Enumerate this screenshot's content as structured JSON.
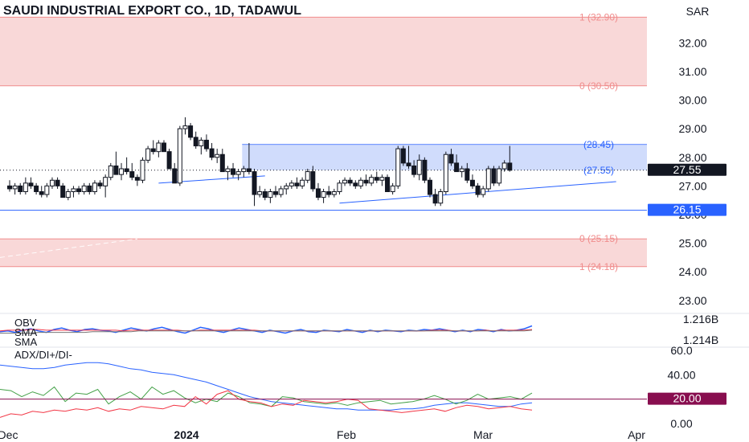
{
  "header": {
    "title": "SAUDI INDUSTRIAL EXPORT CO., 1D, TADAWUL",
    "currency": "SAR"
  },
  "colors": {
    "up": "#ffffff",
    "down": "#131722",
    "outline": "#131722",
    "fib_zone": "#f6c7c7",
    "fib_line": "#f08c8c",
    "range_box": "#c8d6fb",
    "range_line": "#2962ff",
    "obv": "#2962ff",
    "sma_fast": "#f23645",
    "sma_slow": "#777777",
    "adx": "#2962ff",
    "di_plus": "#43a047",
    "di_minus": "#f23645",
    "threshold": "#880e4f",
    "price_badge": "#131722",
    "support_badge": "#2962ff",
    "threshold_badge": "#880e4f"
  },
  "fib_levels": [
    {
      "label": "1 (32.90)",
      "price": 32.9
    },
    {
      "label": "0 (30.50)",
      "price": 30.5
    },
    {
      "label": "0 (25.15)",
      "price": 25.15
    },
    {
      "label": "1 (24.18)",
      "price": 24.18
    }
  ],
  "range_box": {
    "top_label": "(28.45)",
    "top": 28.45,
    "bottom_label": "(27.55)",
    "bottom": 27.55
  },
  "support_line": {
    "price": 26.15,
    "label": "26.15"
  },
  "last_price": {
    "price": 27.55,
    "label": "27.55"
  },
  "chart_data": [
    {
      "type": "candlestick",
      "title": "SAUDI INDUSTRIAL EXPORT CO., 1D, TADAWUL",
      "ylim": [
        22.6,
        33.5
      ],
      "y_ticks": [
        "32.00",
        "31.00",
        "30.00",
        "29.00",
        "28.00",
        "27.00",
        "26.00",
        "25.00",
        "24.00",
        "23.00"
      ],
      "x_labels": [
        "Dec",
        "2024",
        "Feb",
        "Mar",
        "Apr"
      ],
      "candles": [
        [
          27.0,
          27.2,
          26.8,
          26.9
        ],
        [
          26.9,
          27.1,
          26.7,
          27.0
        ],
        [
          27.0,
          27.1,
          26.7,
          26.8
        ],
        [
          26.8,
          27.3,
          26.7,
          27.1
        ],
        [
          27.1,
          27.3,
          26.9,
          27.0
        ],
        [
          27.0,
          27.1,
          26.7,
          26.8
        ],
        [
          26.8,
          27.0,
          26.6,
          26.7
        ],
        [
          26.7,
          27.1,
          26.6,
          27.0
        ],
        [
          27.0,
          27.3,
          26.9,
          27.2
        ],
        [
          27.2,
          27.3,
          26.9,
          27.0
        ],
        [
          27.0,
          27.1,
          26.6,
          26.6
        ],
        [
          26.6,
          26.9,
          26.5,
          26.8
        ],
        [
          26.8,
          27.0,
          26.6,
          26.9
        ],
        [
          26.9,
          27.0,
          26.7,
          26.8
        ],
        [
          26.8,
          27.1,
          26.7,
          27.0
        ],
        [
          27.0,
          27.1,
          26.7,
          26.8
        ],
        [
          26.8,
          27.2,
          26.7,
          27.1
        ],
        [
          27.1,
          27.2,
          26.9,
          27.0
        ],
        [
          27.0,
          27.4,
          26.6,
          27.3
        ],
        [
          27.3,
          27.8,
          27.2,
          27.7
        ],
        [
          27.7,
          28.2,
          27.4,
          27.4
        ],
        [
          27.4,
          27.8,
          27.2,
          27.6
        ],
        [
          27.6,
          28.0,
          27.4,
          27.5
        ],
        [
          27.5,
          27.8,
          27.2,
          27.3
        ],
        [
          27.3,
          27.4,
          27.0,
          27.2
        ],
        [
          27.2,
          28.0,
          27.1,
          27.9
        ],
        [
          27.9,
          28.4,
          27.8,
          28.3
        ],
        [
          28.3,
          28.6,
          28.1,
          28.2
        ],
        [
          28.2,
          28.6,
          28.0,
          28.5
        ],
        [
          28.5,
          28.6,
          28.2,
          28.2
        ],
        [
          28.2,
          28.3,
          27.6,
          27.6
        ],
        [
          27.6,
          27.8,
          27.1,
          27.1
        ],
        [
          27.1,
          29.1,
          27.0,
          29.0
        ],
        [
          29.0,
          29.4,
          28.8,
          29.1
        ],
        [
          29.1,
          29.2,
          28.6,
          28.7
        ],
        [
          28.7,
          28.9,
          28.3,
          28.4
        ],
        [
          28.4,
          28.7,
          28.1,
          28.6
        ],
        [
          28.6,
          28.8,
          28.2,
          28.3
        ],
        [
          28.3,
          28.5,
          27.9,
          28.0
        ],
        [
          28.0,
          28.3,
          27.8,
          28.1
        ],
        [
          28.1,
          28.3,
          27.5,
          27.5
        ],
        [
          27.5,
          27.7,
          27.2,
          27.6
        ],
        [
          27.6,
          27.8,
          27.3,
          27.4
        ],
        [
          27.4,
          27.6,
          27.2,
          27.5
        ],
        [
          27.5,
          27.7,
          27.3,
          27.6
        ],
        [
          27.6,
          28.5,
          27.4,
          27.5
        ],
        [
          27.5,
          27.6,
          26.3,
          26.7
        ],
        [
          26.7,
          27.0,
          26.6,
          26.8
        ],
        [
          26.8,
          26.9,
          26.5,
          26.6
        ],
        [
          26.6,
          26.9,
          26.4,
          26.8
        ],
        [
          26.8,
          27.0,
          26.6,
          26.7
        ],
        [
          26.7,
          27.0,
          26.6,
          26.9
        ],
        [
          26.9,
          27.1,
          26.7,
          27.0
        ],
        [
          27.0,
          27.2,
          26.9,
          27.1
        ],
        [
          27.1,
          27.3,
          26.9,
          27.0
        ],
        [
          27.0,
          27.3,
          26.9,
          27.2
        ],
        [
          27.2,
          27.6,
          27.1,
          27.5
        ],
        [
          27.5,
          27.7,
          26.8,
          26.9
        ],
        [
          26.9,
          27.1,
          26.5,
          26.6
        ],
        [
          26.6,
          26.9,
          26.4,
          26.8
        ],
        [
          26.8,
          27.0,
          26.6,
          26.7
        ],
        [
          26.7,
          26.9,
          26.6,
          26.8
        ],
        [
          26.8,
          27.2,
          26.7,
          27.1
        ],
        [
          27.1,
          27.3,
          27.0,
          27.2
        ],
        [
          27.2,
          27.3,
          27.0,
          27.1
        ],
        [
          27.1,
          27.2,
          26.9,
          27.0
        ],
        [
          27.0,
          27.3,
          26.9,
          27.2
        ],
        [
          27.2,
          27.4,
          27.0,
          27.1
        ],
        [
          27.1,
          27.4,
          27.0,
          27.3
        ],
        [
          27.3,
          27.5,
          27.1,
          27.2
        ],
        [
          27.2,
          27.4,
          27.0,
          27.3
        ],
        [
          27.3,
          27.4,
          26.8,
          26.8
        ],
        [
          26.8,
          27.1,
          26.7,
          27.0
        ],
        [
          27.0,
          28.4,
          26.9,
          28.3
        ],
        [
          28.3,
          28.4,
          27.7,
          27.8
        ],
        [
          27.8,
          28.4,
          27.6,
          27.7
        ],
        [
          27.7,
          27.9,
          27.3,
          27.4
        ],
        [
          27.4,
          28.1,
          27.2,
          27.9
        ],
        [
          27.9,
          28.0,
          27.1,
          27.2
        ],
        [
          27.2,
          27.3,
          26.6,
          26.7
        ],
        [
          26.7,
          26.9,
          26.3,
          26.4
        ],
        [
          26.4,
          26.9,
          26.3,
          26.8
        ],
        [
          26.8,
          28.2,
          26.7,
          28.1
        ],
        [
          28.1,
          28.3,
          27.7,
          27.8
        ],
        [
          27.8,
          28.1,
          27.5,
          27.5
        ],
        [
          27.5,
          27.7,
          27.3,
          27.6
        ],
        [
          27.6,
          27.8,
          27.1,
          27.2
        ],
        [
          27.2,
          27.4,
          26.9,
          27.0
        ],
        [
          27.0,
          27.1,
          26.6,
          26.7
        ],
        [
          26.7,
          27.0,
          26.6,
          26.9
        ],
        [
          26.9,
          27.7,
          26.8,
          27.6
        ],
        [
          27.6,
          27.7,
          27.0,
          27.1
        ],
        [
          27.1,
          27.7,
          27.0,
          27.6
        ],
        [
          27.6,
          27.9,
          27.5,
          27.8
        ],
        [
          27.8,
          28.4,
          27.5,
          27.55
        ]
      ]
    },
    {
      "type": "line",
      "ylim": [
        1.2135,
        1.2175
      ],
      "y_ticks": [
        "1.216B",
        "1.214B"
      ],
      "series": [
        {
          "name": "OBV",
          "values": [
            1.2152,
            1.2153,
            1.2151,
            1.2154,
            1.2156,
            1.2153,
            1.2151,
            1.2155,
            1.2157,
            1.2154,
            1.2152,
            1.2155,
            1.2156,
            1.2154,
            1.2153,
            1.2151,
            1.2154,
            1.2157,
            1.2155,
            1.2153,
            1.2156,
            1.2158,
            1.2155,
            1.2152,
            1.215,
            1.2154,
            1.2158,
            1.2156,
            1.2153,
            1.2151,
            1.2154,
            1.2157,
            1.2155,
            1.2153,
            1.2151,
            1.2154,
            1.2152,
            1.215,
            1.2153,
            1.2155,
            1.2152,
            1.2151,
            1.2154,
            1.2153,
            1.2152,
            1.2155,
            1.2153,
            1.2151,
            1.2154,
            1.2152,
            1.2154,
            1.2153,
            1.2152,
            1.2154,
            1.2153,
            1.2155,
            1.2154,
            1.2156,
            1.2154,
            1.2152,
            1.2154,
            1.2152,
            1.2155,
            1.2154,
            1.2152,
            1.2155,
            1.2153,
            1.2154,
            1.2156,
            1.216
          ]
        },
        {
          "name": "SMA",
          "values": [
            1.2153,
            1.2154,
            1.2154,
            1.2154,
            1.2155,
            1.2155,
            1.2154,
            1.2154,
            1.2154,
            1.2154,
            1.2154,
            1.2154,
            1.2154,
            1.2154,
            1.2154,
            1.2154,
            1.2153,
            1.2154,
            1.2154,
            1.2154,
            1.2154,
            1.2154,
            1.2154,
            1.2154,
            1.2153,
            1.2153,
            1.2154,
            1.2154,
            1.2154,
            1.2154,
            1.2154,
            1.2154,
            1.2154,
            1.2154,
            1.2153,
            1.2153,
            1.2153,
            1.2153,
            1.2153,
            1.2153,
            1.2153,
            1.2153,
            1.2153,
            1.2153,
            1.2153,
            1.2153,
            1.2153,
            1.2153,
            1.2153,
            1.2153,
            1.2153,
            1.2153,
            1.2153,
            1.2153,
            1.2153,
            1.2153,
            1.2154,
            1.2154,
            1.2154,
            1.2153,
            1.2153,
            1.2153,
            1.2153,
            1.2154,
            1.2153,
            1.2154,
            1.2154,
            1.2154,
            1.2154,
            1.2155
          ]
        },
        {
          "name": "SMA",
          "values": [
            1.215,
            1.215,
            1.215,
            1.215,
            1.215,
            1.2151,
            1.2151,
            1.2151,
            1.2151,
            1.2151,
            1.2151,
            1.2151,
            1.2152,
            1.2152,
            1.2152,
            1.2152,
            1.2152,
            1.2152,
            1.2153,
            1.2153,
            1.2153,
            1.2153,
            1.2153,
            1.2153,
            1.2153,
            1.2153,
            1.2153,
            1.2153,
            1.2153,
            1.2153,
            1.2153,
            1.2153,
            1.2153,
            1.2153,
            1.2153,
            1.2153,
            1.2153,
            1.2153,
            1.2153,
            1.2153,
            1.2153,
            1.2153,
            1.2153,
            1.2153,
            1.2153,
            1.2153,
            1.2153,
            1.2153,
            1.2153,
            1.2153,
            1.2153,
            1.2153,
            1.2153,
            1.2153,
            1.2153,
            1.2153,
            1.2153,
            1.2153,
            1.2153,
            1.2153,
            1.2153,
            1.2153,
            1.2153,
            1.2153,
            1.2153,
            1.2153,
            1.2153,
            1.2153,
            1.2153,
            1.2154
          ]
        }
      ]
    },
    {
      "type": "line",
      "title": "ADX/DI+/DI-",
      "ylim": [
        0,
        60
      ],
      "y_ticks": [
        "60.0",
        "40.00",
        "20.00",
        "0.00"
      ],
      "threshold": 20,
      "series": [
        {
          "name": "ADX",
          "values": [
            48,
            47,
            46,
            45,
            45,
            46,
            48,
            49,
            50,
            50,
            49,
            47,
            45,
            44,
            42,
            41,
            40,
            38,
            36,
            34,
            31,
            28,
            25,
            22,
            20,
            18,
            17,
            16,
            15,
            14,
            13,
            12,
            12,
            11,
            11,
            11,
            11,
            12,
            12,
            13,
            15,
            16,
            17,
            17,
            16,
            15,
            14,
            14,
            16,
            17
          ]
        },
        {
          "name": "DI+",
          "values": [
            28,
            27,
            22,
            26,
            23,
            30,
            18,
            25,
            24,
            28,
            16,
            22,
            26,
            20,
            30,
            24,
            27,
            21,
            17,
            20,
            18,
            25,
            22,
            17,
            16,
            14,
            22,
            21,
            18,
            17,
            16,
            17,
            15,
            17,
            18,
            19,
            16,
            17,
            18,
            20,
            23,
            20,
            16,
            19,
            24,
            20,
            21,
            22,
            20,
            25
          ]
        },
        {
          "name": "DI-",
          "values": [
            5,
            8,
            7,
            10,
            9,
            11,
            10,
            12,
            11,
            13,
            10,
            12,
            11,
            14,
            13,
            12,
            15,
            14,
            22,
            16,
            24,
            27,
            20,
            18,
            17,
            14,
            16,
            15,
            19,
            18,
            17,
            18,
            20,
            19,
            12,
            11,
            10,
            9,
            10,
            11,
            12,
            10,
            13,
            15,
            14,
            12,
            13,
            14,
            12,
            11
          ]
        }
      ]
    }
  ]
}
